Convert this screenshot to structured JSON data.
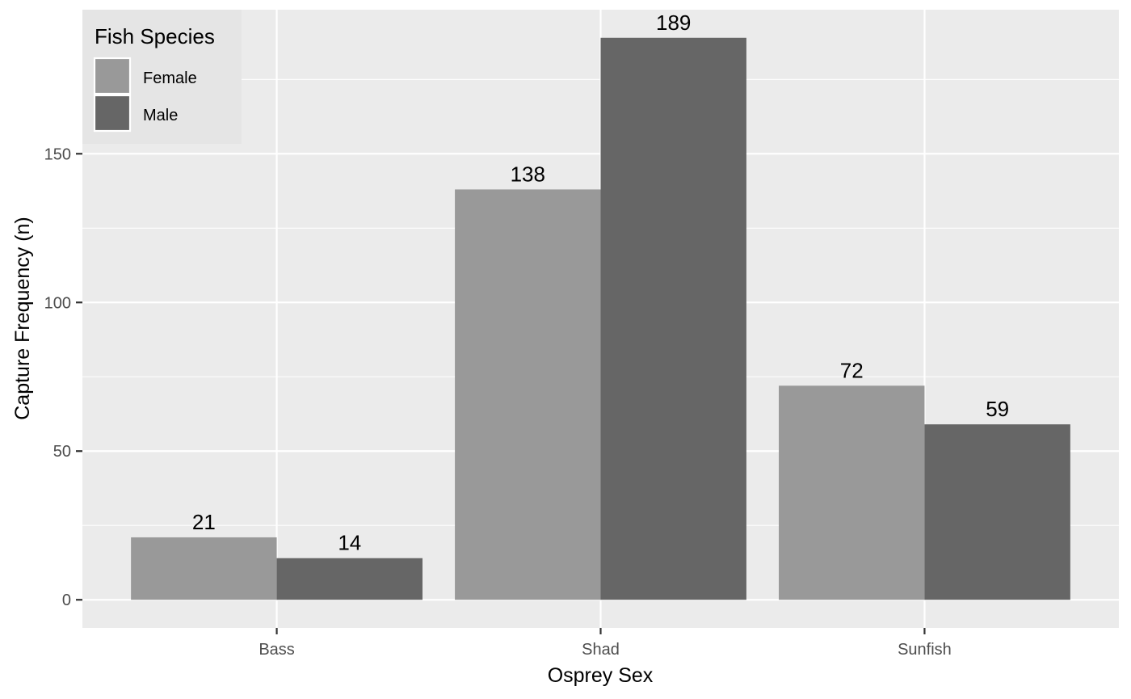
{
  "chart_data": {
    "type": "bar",
    "title": "",
    "xlabel": "Osprey Sex",
    "ylabel": "Capture Frequency (n)",
    "categories": [
      "Bass",
      "Shad",
      "Sunfish"
    ],
    "series": [
      {
        "name": "Female",
        "values": [
          21,
          138,
          72
        ],
        "color": "#999999"
      },
      {
        "name": "Male",
        "values": [
          14,
          189,
          59
        ],
        "color": "#666666"
      }
    ],
    "ylim": [
      -9.45,
      198.45
    ],
    "yticks": [
      0,
      50,
      100,
      150
    ],
    "grid": true,
    "legend": {
      "title": "Fish Species",
      "placement": "top-left"
    },
    "colors": {
      "panel": "#ebebeb",
      "grid_major": "#ffffff",
      "legend_bg": "#e5e5e5"
    }
  }
}
